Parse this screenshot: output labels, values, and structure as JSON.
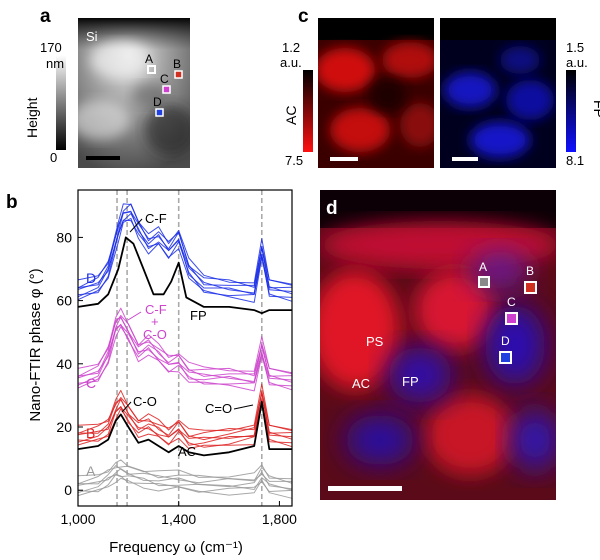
{
  "panels": {
    "a": {
      "letter": "a",
      "substrate_label": "Si",
      "colorbar_max": "170",
      "colorbar_unit": "nm",
      "colorbar_min": "0",
      "colorbar_title": "Height",
      "points": [
        "A",
        "B",
        "C",
        "D"
      ],
      "point_colors": [
        "#9a9a9a",
        "#d03020",
        "#d040d0",
        "#2040e0"
      ]
    },
    "b": {
      "letter": "b",
      "ylabel": "Nano-FTIR phase φ (°)",
      "xlabel": "Frequency ω (cm⁻¹)",
      "xticks": [
        "1,000",
        "1,400",
        "1,800"
      ],
      "yticks": [
        "0",
        "20",
        "40",
        "60",
        "80"
      ],
      "annotations": {
        "cf": "C-F",
        "fp": "FP",
        "cf_co_1": "C-F",
        "cf_co_2": "+",
        "cf_co_3": "C-O",
        "co": "C-O",
        "c_double_o": "C=O",
        "ac": "AC"
      },
      "series_labels": [
        "D",
        "C",
        "B",
        "A"
      ],
      "series_colors": [
        "#1a2ee6",
        "#cc44cc",
        "#dd2222",
        "#999999"
      ],
      "reference_color": "#000000",
      "guide_line_color": "#aaaaaa"
    },
    "c": {
      "letter": "c",
      "ac_max": "1.2",
      "ac_unit": "a.u.",
      "ac_min": "7.5",
      "ac_title": "AC",
      "fp_max": "1.5",
      "fp_unit": "a.u.",
      "fp_min": "8.1",
      "fp_title": "FP"
    },
    "d": {
      "letter": "d",
      "labels": [
        "PS",
        "AC",
        "FP"
      ],
      "points": [
        "A",
        "B",
        "C",
        "D"
      ]
    }
  },
  "chart_data": {
    "type": "line",
    "title": "",
    "xlabel": "Frequency ω (cm⁻¹)",
    "ylabel": "Nano-FTIR phase φ (°)",
    "xlim": [
      1000,
      1850
    ],
    "ylim": [
      -5,
      95
    ],
    "grid": false,
    "vertical_guides": [
      1155,
      1195,
      1400,
      1730
    ],
    "series": [
      {
        "name": "D",
        "x": [
          1000,
          1080,
          1120,
          1160,
          1180,
          1210,
          1240,
          1280,
          1320,
          1360,
          1400,
          1440,
          1500,
          1600,
          1700,
          1730,
          1760,
          1850
        ],
        "y": [
          63,
          65,
          70,
          82,
          87,
          88,
          83,
          78,
          80,
          76,
          80,
          70,
          65,
          64,
          63,
          76,
          64,
          63
        ]
      },
      {
        "name": "FP",
        "x": [
          1000,
          1080,
          1120,
          1160,
          1190,
          1220,
          1260,
          1300,
          1340,
          1370,
          1400,
          1430,
          1500,
          1600,
          1700,
          1730,
          1760,
          1850
        ],
        "y": [
          58,
          59,
          62,
          70,
          80,
          78,
          70,
          62,
          62,
          66,
          72,
          61,
          58,
          58,
          57,
          56,
          57,
          57
        ]
      },
      {
        "name": "C",
        "x": [
          1000,
          1080,
          1120,
          1150,
          1170,
          1200,
          1240,
          1280,
          1320,
          1360,
          1400,
          1440,
          1500,
          1600,
          1700,
          1730,
          1760,
          1850
        ],
        "y": [
          35,
          37,
          43,
          52,
          54,
          50,
          44,
          46,
          43,
          40,
          41,
          37,
          36,
          36,
          35,
          45,
          36,
          35
        ]
      },
      {
        "name": "B",
        "x": [
          1000,
          1080,
          1120,
          1150,
          1170,
          1200,
          1240,
          1280,
          1320,
          1360,
          1400,
          1440,
          1500,
          1600,
          1700,
          1730,
          1760,
          1850
        ],
        "y": [
          17,
          18,
          20,
          26,
          28,
          24,
          20,
          21,
          19,
          17,
          20,
          16,
          16,
          17,
          18,
          30,
          18,
          17
        ]
      },
      {
        "name": "AC",
        "x": [
          1000,
          1080,
          1120,
          1150,
          1170,
          1200,
          1240,
          1280,
          1320,
          1360,
          1400,
          1440,
          1500,
          1600,
          1700,
          1730,
          1760,
          1850
        ],
        "y": [
          13,
          14,
          16,
          22,
          24,
          20,
          15,
          16,
          14,
          12,
          14,
          12,
          11,
          12,
          14,
          28,
          13,
          13
        ]
      },
      {
        "name": "A",
        "x": [
          1000,
          1080,
          1120,
          1150,
          1170,
          1200,
          1260,
          1320,
          1400,
          1480,
          1600,
          1700,
          1730,
          1760,
          1850
        ],
        "y": [
          1,
          2,
          4,
          6,
          6,
          5,
          4,
          3,
          3,
          2,
          2,
          2,
          5,
          2,
          1
        ]
      }
    ]
  }
}
